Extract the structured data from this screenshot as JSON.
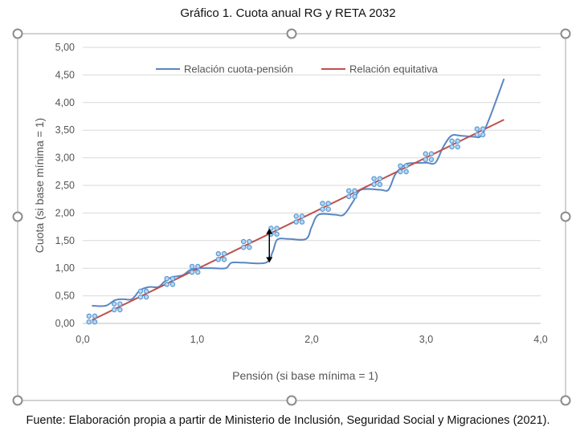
{
  "title": "Gráfico 1. Cuota anual RG y RETA 2032",
  "source": "Fuente: Elaboración propia a partir de Ministerio de Inclusión, Seguridad Social y Migraciones (2021).",
  "colors": {
    "curve": "#5b86c2",
    "equitable": "#c0504d",
    "marker": "#5b9bd5",
    "marker_fill": "#bdd7ee",
    "grid": "#d9d9d9",
    "frame": "#a6a6a6"
  },
  "chart_data": {
    "type": "line",
    "title": "Gráfico 1. Cuota anual RG y RETA 2032",
    "xlabel": "Pensión (si base mínima = 1)",
    "ylabel": "Cuota (si base mínima = 1)",
    "xlim": [
      0,
      4
    ],
    "ylim": [
      0,
      5
    ],
    "x_ticks": [
      "0,0",
      "1,0",
      "2,0",
      "3,0",
      "4,0"
    ],
    "y_ticks": [
      "0,00",
      "0,50",
      "1,00",
      "1,50",
      "2,00",
      "2,50",
      "3,00",
      "3,50",
      "4,00",
      "4,50",
      "5,00"
    ],
    "grid": "horizontal",
    "legend_position": "top",
    "series": [
      {
        "name": "Relación cuota-pensión",
        "color": "#5b86c2",
        "points": [
          [
            0.08,
            0.32
          ],
          [
            0.2,
            0.32
          ],
          [
            0.28,
            0.42
          ],
          [
            0.35,
            0.44
          ],
          [
            0.43,
            0.44
          ],
          [
            0.5,
            0.6
          ],
          [
            0.58,
            0.66
          ],
          [
            0.66,
            0.66
          ],
          [
            0.72,
            0.77
          ],
          [
            0.78,
            0.84
          ],
          [
            0.87,
            0.87
          ],
          [
            0.94,
            0.97
          ],
          [
            1.02,
            1.0
          ],
          [
            1.15,
            1.0
          ],
          [
            1.25,
            1.0
          ],
          [
            1.3,
            1.1
          ],
          [
            1.4,
            1.1
          ],
          [
            1.6,
            1.1
          ],
          [
            1.66,
            1.3
          ],
          [
            1.7,
            1.52
          ],
          [
            1.8,
            1.53
          ],
          [
            1.95,
            1.53
          ],
          [
            2.0,
            1.75
          ],
          [
            2.06,
            1.97
          ],
          [
            2.2,
            1.97
          ],
          [
            2.28,
            1.97
          ],
          [
            2.36,
            2.2
          ],
          [
            2.43,
            2.42
          ],
          [
            2.6,
            2.42
          ],
          [
            2.67,
            2.42
          ],
          [
            2.73,
            2.7
          ],
          [
            2.8,
            2.85
          ],
          [
            2.85,
            2.9
          ],
          [
            3.0,
            2.91
          ],
          [
            3.08,
            2.91
          ],
          [
            3.15,
            3.2
          ],
          [
            3.22,
            3.4
          ],
          [
            3.3,
            3.4
          ],
          [
            3.42,
            3.38
          ],
          [
            3.48,
            3.4
          ],
          [
            3.55,
            3.7
          ],
          [
            3.68,
            4.43
          ]
        ]
      },
      {
        "name": "Relación equitativa",
        "color": "#c0504d",
        "points": [
          [
            0.08,
            0.06
          ],
          [
            3.68,
            3.69
          ]
        ]
      }
    ],
    "markers": [
      [
        0.08,
        0.08
      ],
      [
        0.3,
        0.3
      ],
      [
        0.53,
        0.53
      ],
      [
        0.76,
        0.76
      ],
      [
        0.98,
        0.98
      ],
      [
        1.21,
        1.21
      ],
      [
        1.43,
        1.43
      ],
      [
        1.67,
        1.67
      ],
      [
        1.89,
        1.89
      ],
      [
        2.12,
        2.12
      ],
      [
        2.35,
        2.35
      ],
      [
        2.57,
        2.57
      ],
      [
        2.8,
        2.8
      ],
      [
        3.02,
        3.02
      ],
      [
        3.25,
        3.25
      ],
      [
        3.47,
        3.47
      ]
    ],
    "arrow": {
      "x": 1.63,
      "y_from": 1.1,
      "y_to": 1.72
    }
  }
}
